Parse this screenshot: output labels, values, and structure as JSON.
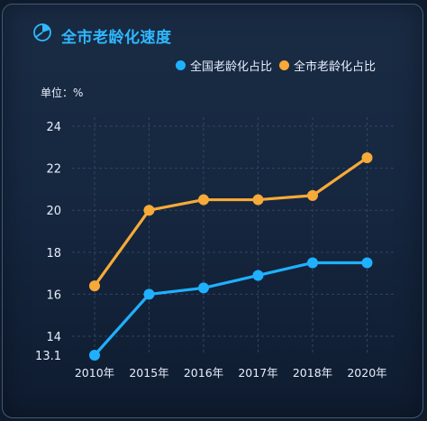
{
  "title": "全市老龄化速度",
  "unit_label": "单位：%",
  "colors": {
    "series_1": "#1fb1ff",
    "series_2": "#f7aa38",
    "title": "#2fb8ff",
    "axis_text": "#e6eefc",
    "grid": "#2d4566"
  },
  "chart_data": {
    "type": "line",
    "categories": [
      "2010年",
      "2015年",
      "2016年",
      "2017年",
      "2018年",
      "2020年"
    ],
    "y_ticks": [
      "13.1",
      "14",
      "16",
      "18",
      "20",
      "22",
      "24"
    ],
    "ylim": [
      13.1,
      24
    ],
    "grid": true,
    "legend_position": "top-right",
    "series": [
      {
        "name": "全国老龄化占比",
        "values": [
          13.1,
          16.0,
          16.3,
          16.9,
          17.5,
          17.5
        ]
      },
      {
        "name": "全市老龄化占比",
        "values": [
          16.4,
          20.0,
          20.5,
          20.5,
          20.7,
          22.5
        ]
      }
    ]
  }
}
